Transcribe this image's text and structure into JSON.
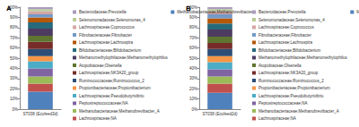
{
  "chart_data": [
    {
      "type": "bar",
      "title": "A",
      "stacked": true,
      "grid": false,
      "legend": "right",
      "categories": [
        "ST038 (Ecofeed3d)"
      ],
      "ylim": [
        0,
        100
      ],
      "yticks": [
        {
          "value": 0,
          "label": "0%"
        },
        {
          "value": 10,
          "label": "10%"
        },
        {
          "value": 20,
          "label": "20%"
        },
        {
          "value": 30,
          "label": "30%"
        },
        {
          "value": 40,
          "label": "40%"
        },
        {
          "value": 50,
          "label": "50%"
        },
        {
          "value": 60,
          "label": "60%"
        },
        {
          "value": 70,
          "label": "70%"
        },
        {
          "value": 80,
          "label": "80%"
        },
        {
          "value": 90,
          "label": "90%"
        },
        {
          "value": 100,
          "label": "100%"
        }
      ],
      "series": [
        {
          "name": "Methanobacteriaceae;Methanobrevibacter",
          "color": "#4f81bd",
          "values": [
            17
          ]
        },
        {
          "name": "Lachnospiraceae;NA",
          "color": "#c0504d",
          "values": [
            8
          ]
        },
        {
          "name": "Methanobacteriaceae;Methanobrevibacter_A",
          "color": "#9bbb59",
          "values": [
            7
          ]
        },
        {
          "name": "Peptostreptococcaceae;NA",
          "color": "#8064a2",
          "values": [
            8
          ]
        },
        {
          "name": "Lachnospiraceae;Pseudobutyrivibrio",
          "color": "#4bacc6",
          "values": [
            7
          ]
        },
        {
          "name": "Propionibacteriaceae;Propionibacterium",
          "color": "#f79646",
          "values": [
            5
          ]
        },
        {
          "name": "Ruminococcaceae;Ruminococcus_2",
          "color": "#2c4d75",
          "values": [
            7
          ]
        },
        {
          "name": "Lachnospiraceae;NK3A20_group",
          "color": "#772c2a",
          "values": [
            7
          ]
        },
        {
          "name": "Atopobiaceae;Olsenella",
          "color": "#5f7530",
          "values": [
            6
          ]
        },
        {
          "name": "Methanomethylophilaceae;Methanomethylophilus",
          "color": "#4d3b62",
          "values": [
            7
          ]
        },
        {
          "name": "Bifidobacteriaceae;Bifidobacterium",
          "color": "#276a7c",
          "values": [
            6
          ]
        },
        {
          "name": "Lachnospiraceae;Lachnospira",
          "color": "#b65708",
          "values": [
            5
          ]
        },
        {
          "name": "Fibrobacteraceae;Fibrobacter",
          "color": "#729aca",
          "values": [
            3
          ]
        },
        {
          "name": "Lachnospiraceae;Coprococcus",
          "color": "#d4a6a4",
          "values": [
            3
          ]
        },
        {
          "name": "Selenomonadaceae;Selenomonas_4",
          "color": "#b9cd96",
          "values": [
            2
          ]
        },
        {
          "name": "Bacteroidaceae;Prevotella",
          "color": "#a99bbd",
          "values": [
            2
          ]
        }
      ]
    },
    {
      "type": "bar",
      "title": "B",
      "stacked": true,
      "grid": false,
      "legend": "right",
      "categories": [
        "ST038 (Ecofeed2d)"
      ],
      "ylim": [
        0,
        100
      ],
      "yticks": [
        {
          "value": 0,
          "label": "0%"
        },
        {
          "value": 10,
          "label": "10%"
        },
        {
          "value": 20,
          "label": "20%"
        },
        {
          "value": 30,
          "label": "30%"
        },
        {
          "value": 40,
          "label": "40%"
        },
        {
          "value": 50,
          "label": "50%"
        },
        {
          "value": 60,
          "label": "60%"
        },
        {
          "value": 70,
          "label": "70%"
        },
        {
          "value": 80,
          "label": "80%"
        },
        {
          "value": 90,
          "label": "90%"
        },
        {
          "value": 100,
          "label": "100%"
        }
      ],
      "series": [
        {
          "name": "Methanobacteriaceae;Methanobrevibacter",
          "color": "#4f81bd",
          "values": [
            16
          ]
        },
        {
          "name": "Lachnospiraceae;NA",
          "color": "#c0504d",
          "values": [
            9
          ]
        },
        {
          "name": "Methanobacteriaceae;Methanobrevibacter_A",
          "color": "#9bbb59",
          "values": [
            7
          ]
        },
        {
          "name": "Peptostreptococcaceae;NA",
          "color": "#8064a2",
          "values": [
            7
          ]
        },
        {
          "name": "Lachnospiraceae;Pseudobutyrivibrio",
          "color": "#4bacc6",
          "values": [
            7
          ]
        },
        {
          "name": "Propionibacteriaceae;Propionibacterium",
          "color": "#f79646",
          "values": [
            6
          ]
        },
        {
          "name": "Ruminococcaceae;Ruminococcus_2",
          "color": "#2c4d75",
          "values": [
            7
          ]
        },
        {
          "name": "Lachnospiraceae;NK3A20_group",
          "color": "#772c2a",
          "values": [
            6
          ]
        },
        {
          "name": "Atopobiaceae;Olsenella",
          "color": "#5f7530",
          "values": [
            6
          ]
        },
        {
          "name": "Methanomethylophilaceae;Methanomethylophilus",
          "color": "#4d3b62",
          "values": [
            7
          ]
        },
        {
          "name": "Bifidobacteriaceae;Bifidobacterium",
          "color": "#276a7c",
          "values": [
            6
          ]
        },
        {
          "name": "Lachnospiraceae;Lachnospira",
          "color": "#b65708",
          "values": [
            5
          ]
        },
        {
          "name": "Fibrobacteraceae;Fibrobacter",
          "color": "#729aca",
          "values": [
            4
          ]
        },
        {
          "name": "Lachnospiraceae;Coprococcus",
          "color": "#d4a6a4",
          "values": [
            3
          ]
        },
        {
          "name": "Selenomonadaceae;Selenomonas_4",
          "color": "#b9cd96",
          "values": [
            2
          ]
        },
        {
          "name": "Bacteroidaceae;Prevotella",
          "color": "#a99bbd",
          "values": [
            2
          ]
        }
      ]
    }
  ]
}
